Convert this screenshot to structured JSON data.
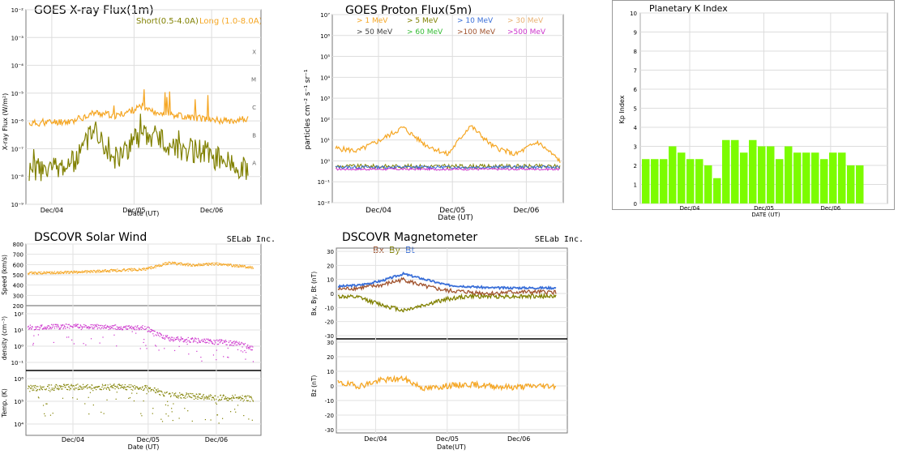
{
  "colors": {
    "orange": "#f5a623",
    "olive": "#808000",
    "blue": "#3a6fd8",
    "tan": "#e8b070",
    "dark": "#404040",
    "green": "#33bb33",
    "brown": "#a0522d",
    "magenta": "#cc33cc",
    "kp_green": "#7cfc00"
  },
  "xray": {
    "title": "GOES X-ray Flux(1m)",
    "legend_short": "Short(0.5-4.0A)",
    "legend_long": "Long (1.0-8.0A)",
    "ylabel": "X-ray Flux (W/m²)",
    "xlabel": "Date (UT)",
    "yticks": [
      "10⁻⁹",
      "10⁻⁸",
      "10⁻⁷",
      "10⁻⁶",
      "10⁻⁵",
      "10⁻⁴",
      "10⁻³",
      "10⁻²"
    ],
    "classes": [
      "A",
      "B",
      "C",
      "M",
      "X"
    ],
    "xticks": [
      "Dec/04",
      "Dec/05",
      "Dec/06"
    ]
  },
  "proton": {
    "title": "GOES Proton Flux(5m)",
    "ylabel": "particles cm⁻² s⁻¹ sr⁻¹",
    "xlabel": "Date (UT)",
    "yticks": [
      "10⁻²",
      "10⁻¹",
      "10⁰",
      "10¹",
      "10²",
      "10³",
      "10⁴",
      "10⁵",
      "10⁶",
      "10⁷"
    ],
    "xticks": [
      "Dec/04",
      "Dec/05",
      "Dec/06"
    ],
    "legend": [
      {
        "label": "> 1 MeV",
        "color": "#f5a623"
      },
      {
        "label": "> 5 MeV",
        "color": "#808000"
      },
      {
        "label": "> 10 MeV",
        "color": "#3a6fd8"
      },
      {
        "label": "> 30 MeV",
        "color": "#e8b070"
      },
      {
        "label": "> 50 MeV",
        "color": "#404040"
      },
      {
        "label": "> 60 MeV",
        "color": "#33bb33"
      },
      {
        "label": ">100 MeV",
        "color": "#a0522d"
      },
      {
        "label": ">500 MeV",
        "color": "#cc33cc"
      }
    ]
  },
  "kp": {
    "title": "Planetary K Index",
    "ylabel": "Kp Index",
    "xlabel": "DATE (UT)",
    "yticks": [
      "0",
      "1",
      "2",
      "3",
      "4",
      "5",
      "6",
      "7",
      "8",
      "9",
      "10"
    ],
    "xticks": [
      "Dec/04",
      "Dec/05",
      "Dec/06"
    ]
  },
  "wind": {
    "title": "DSCOVR Solar Wind",
    "brand": "SELab Inc.",
    "speed_label": "Speed (km/s)",
    "speed_ticks": [
      "200",
      "300",
      "400",
      "500",
      "600",
      "700",
      "800"
    ],
    "density_label": "density (cm⁻³)",
    "density_ticks": [
      "10⁻¹",
      "10⁰",
      "10¹",
      "10²"
    ],
    "temp_label": "Temp. (K)",
    "temp_ticks": [
      "10⁴",
      "10⁵",
      "10⁶"
    ],
    "xlabel": "Date (UT)",
    "xticks": [
      "Dec/04",
      "Dec/05",
      "Dec/06"
    ]
  },
  "mag": {
    "title": "DSCOVR Magnetometer",
    "brand": "SELab Inc.",
    "legend": [
      {
        "label": "Bx",
        "color": "#a0522d"
      },
      {
        "label": "By",
        "color": "#808000"
      },
      {
        "label": "Bt",
        "color": "#3a6fd8"
      }
    ],
    "top_label": "Bx, By, Bt (nT)",
    "bot_label": "Bz (nT)",
    "yticks": [
      "-30",
      "-20",
      "-10",
      "0",
      "10",
      "20",
      "30"
    ],
    "xlabel": "Date(UT)",
    "xticks": [
      "Dec/04",
      "Dec/05",
      "Dec/06"
    ]
  },
  "chart_data": [
    {
      "type": "line",
      "title": "GOES X-ray Flux(1m)",
      "ylabel": "X-ray Flux (W/m²)",
      "xlabel": "Date (UT)",
      "yscale": "log",
      "ylim": [
        1e-09,
        0.01
      ],
      "x_ticks": [
        "Dec/04",
        "Dec/05",
        "Dec/06"
      ],
      "series": [
        {
          "name": "Short(0.5-4.0A)",
          "x": [
            0,
            0.1,
            0.2,
            0.3,
            0.4,
            0.5,
            0.6,
            0.7,
            0.8,
            0.9,
            1.0
          ],
          "values": [
            1.5e-08,
            2e-08,
            3e-08,
            5e-07,
            4e-08,
            3e-07,
            2e-07,
            1e-07,
            8e-08,
            3e-08,
            2e-08
          ]
        },
        {
          "name": "Long (1.0-8.0A)",
          "x": [
            0,
            0.1,
            0.2,
            0.3,
            0.4,
            0.5,
            0.6,
            0.7,
            0.8,
            0.9,
            1.0
          ],
          "values": [
            8e-07,
            9e-07,
            1e-06,
            2e-06,
            1.5e-06,
            3e-06,
            2e-06,
            1.5e-06,
            1.2e-06,
            1e-06,
            1.2e-06
          ]
        }
      ]
    },
    {
      "type": "line",
      "title": "GOES Proton Flux(5m)",
      "ylabel": "particles cm⁻² s⁻¹ sr⁻¹",
      "xlabel": "Date (UT)",
      "yscale": "log",
      "ylim": [
        0.01,
        10000000.0
      ],
      "x_ticks": [
        "Dec/04",
        "Dec/05",
        "Dec/06"
      ],
      "series": [
        {
          "name": "> 1 MeV",
          "x": [
            0,
            0.1,
            0.2,
            0.3,
            0.4,
            0.5,
            0.6,
            0.7,
            0.8,
            0.9,
            1.0
          ],
          "values": [
            4,
            3,
            10,
            40,
            6,
            2,
            50,
            5,
            2,
            8,
            1
          ]
        },
        {
          "name": ">500 MeV",
          "x": [
            0,
            0.5,
            1.0
          ],
          "values": [
            0.4,
            0.4,
            0.4
          ]
        }
      ]
    },
    {
      "type": "bar",
      "title": "Planetary K Index",
      "ylabel": "Kp Index",
      "xlabel": "DATE (UT)",
      "ylim": [
        0,
        10
      ],
      "x_ticks": [
        "Dec/04",
        "Dec/05",
        "Dec/06"
      ],
      "values": [
        2.33,
        2.33,
        2.33,
        3,
        2.67,
        2.33,
        2.33,
        2,
        1.33,
        3.33,
        3.33,
        2.67,
        3.33,
        3,
        3,
        2.33,
        3,
        2.67,
        2.67,
        2.67,
        2.33,
        2.67,
        2.67,
        2,
        2
      ]
    },
    {
      "type": "scatter",
      "title": "DSCOVR Solar Wind",
      "x_ticks": [
        "Dec/04",
        "Dec/05",
        "Dec/06"
      ],
      "series": [
        {
          "name": "Speed (km/s)",
          "x": [
            0,
            0.2,
            0.4,
            0.5,
            0.6,
            0.7,
            0.8,
            0.9,
            1.0
          ],
          "values": [
            520,
            530,
            550,
            560,
            620,
            600,
            610,
            590,
            560
          ]
        },
        {
          "name": "density (cm⁻³)",
          "x": [
            0,
            0.2,
            0.4,
            0.5,
            0.6,
            0.7,
            0.8,
            0.9,
            1.0
          ],
          "values": [
            15,
            18,
            15,
            14,
            3,
            2.5,
            2,
            1.5,
            0.5
          ]
        },
        {
          "name": "Temp. (K)",
          "x": [
            0,
            0.2,
            0.4,
            0.5,
            0.6,
            0.7,
            0.8,
            0.9,
            1.0
          ],
          "values": [
            400000,
            450000,
            450000,
            400000,
            200000,
            180000,
            150000,
            150000,
            120000
          ]
        }
      ]
    },
    {
      "type": "line",
      "title": "DSCOVR Magnetometer",
      "ylim": [
        -30,
        30
      ],
      "x_ticks": [
        "Dec/04",
        "Dec/05",
        "Dec/06"
      ],
      "series": [
        {
          "name": "Bt",
          "x": [
            0,
            0.1,
            0.2,
            0.3,
            0.4,
            0.5,
            0.6,
            0.7,
            0.8,
            0.9,
            1.0
          ],
          "values": [
            5,
            6,
            9,
            14,
            10,
            6,
            5,
            4,
            4,
            4,
            4
          ]
        },
        {
          "name": "Bx",
          "x": [
            0,
            0.1,
            0.2,
            0.3,
            0.4,
            0.5,
            0.6,
            0.7,
            0.8,
            0.9,
            1.0
          ],
          "values": [
            3,
            4,
            6,
            10,
            5,
            2,
            1,
            0,
            1,
            1,
            1
          ]
        },
        {
          "name": "By",
          "x": [
            0,
            0.1,
            0.2,
            0.3,
            0.4,
            0.5,
            0.6,
            0.7,
            0.8,
            0.9,
            1.0
          ],
          "values": [
            -2,
            -3,
            -8,
            -12,
            -8,
            -4,
            -2,
            -2,
            -2,
            -2,
            -2
          ]
        },
        {
          "name": "Bz",
          "x": [
            0,
            0.1,
            0.2,
            0.3,
            0.4,
            0.5,
            0.6,
            0.7,
            0.8,
            0.9,
            1.0
          ],
          "values": [
            2,
            0,
            4,
            5,
            -2,
            0,
            1,
            0,
            -1,
            0,
            0
          ]
        }
      ]
    }
  ]
}
